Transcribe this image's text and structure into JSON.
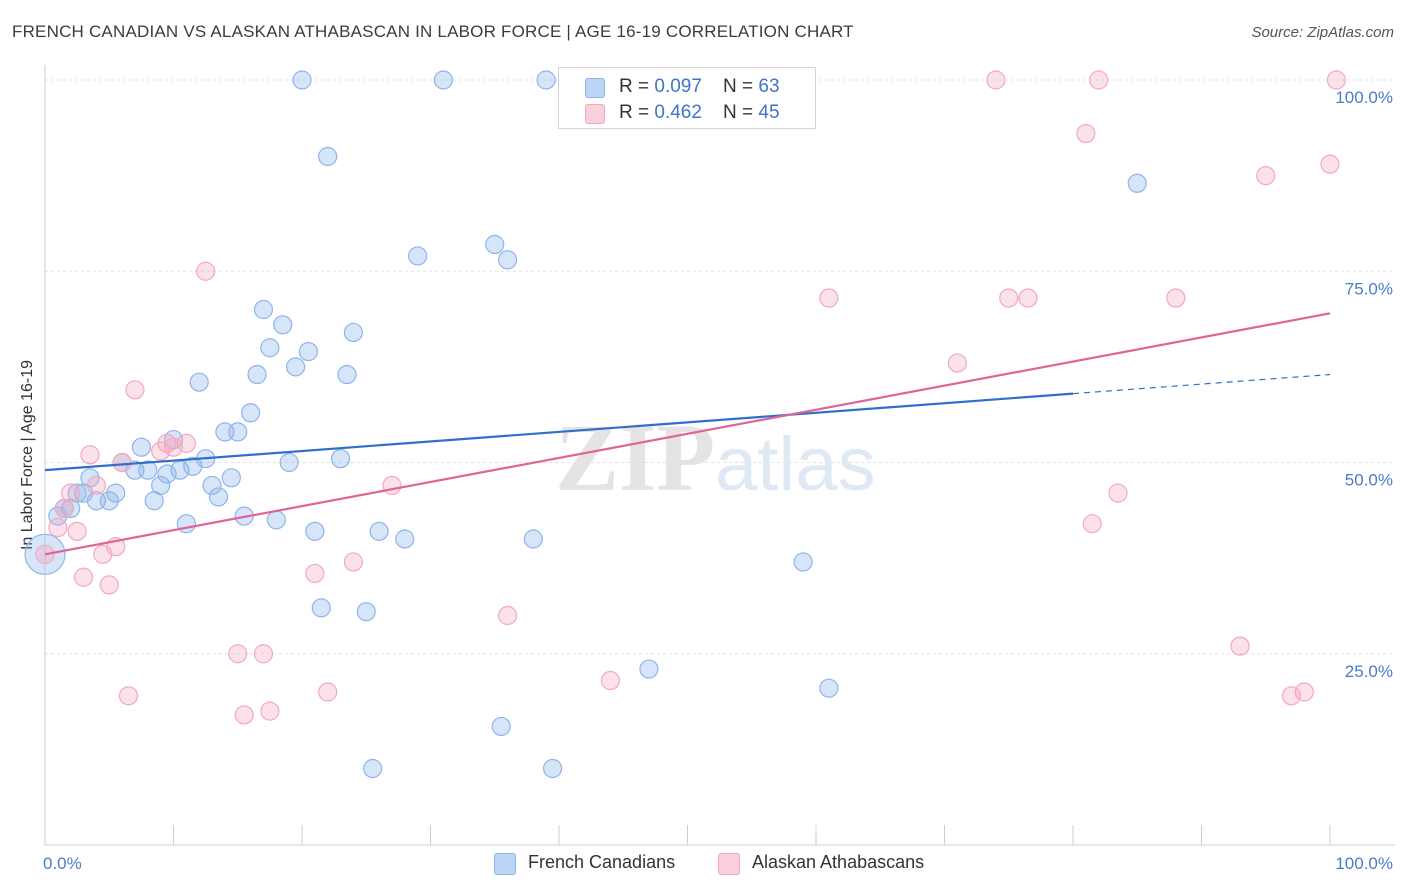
{
  "chart_data": {
    "type": "scatter",
    "title": "FRENCH CANADIAN VS ALASKAN ATHABASCAN IN LABOR FORCE | AGE 16-19 CORRELATION CHART",
    "source": "Source: ZipAtlas.com",
    "xlabel": "",
    "ylabel": "In Labor Force | Age 16-19",
    "xlim": [
      0,
      100
    ],
    "ylim": [
      0,
      100
    ],
    "x_tick_labels": [
      "0.0%",
      "100.0%"
    ],
    "y_ticks": [
      25,
      50,
      75,
      100
    ],
    "y_tick_labels": [
      "25.0%",
      "50.0%",
      "75.0%",
      "100.0%"
    ],
    "grid": true,
    "watermark": "ZIPatlas",
    "legend_position": "top-center",
    "series": [
      {
        "name": "French Canadians",
        "color": "#8db5ea",
        "line_color": "#2f6fcb",
        "R": "0.097",
        "N": "63",
        "trend": {
          "x0": 0,
          "y0": 49.0,
          "x1": 80,
          "y1": 59.0,
          "dash_to_x": 100,
          "dash_to_y": 61.5
        },
        "points": [
          [
            0,
            38
          ],
          [
            1,
            43
          ],
          [
            1.5,
            44
          ],
          [
            2,
            44
          ],
          [
            2.5,
            46
          ],
          [
            3,
            46
          ],
          [
            3.5,
            48
          ],
          [
            4,
            45
          ],
          [
            5,
            45
          ],
          [
            5.5,
            46
          ],
          [
            6,
            50
          ],
          [
            7,
            49
          ],
          [
            7.5,
            52
          ],
          [
            8,
            49
          ],
          [
            8.5,
            45
          ],
          [
            9,
            47
          ],
          [
            9.5,
            48.5
          ],
          [
            10,
            53
          ],
          [
            10.5,
            49
          ],
          [
            11,
            42
          ],
          [
            11.5,
            49.5
          ],
          [
            12,
            60.5
          ],
          [
            12.5,
            50.5
          ],
          [
            13,
            47
          ],
          [
            13.5,
            45.5
          ],
          [
            14,
            54
          ],
          [
            14.5,
            48
          ],
          [
            15,
            54
          ],
          [
            15.5,
            43
          ],
          [
            16,
            56.5
          ],
          [
            16.5,
            61.5
          ],
          [
            17,
            70
          ],
          [
            17.5,
            65
          ],
          [
            18,
            42.5
          ],
          [
            18.5,
            68
          ],
          [
            19,
            50
          ],
          [
            19.5,
            62.5
          ],
          [
            20,
            100
          ],
          [
            20.5,
            64.5
          ],
          [
            21,
            41
          ],
          [
            21.5,
            31
          ],
          [
            22,
            90
          ],
          [
            23,
            50.5
          ],
          [
            23.5,
            61.5
          ],
          [
            24,
            67
          ],
          [
            25,
            30.5
          ],
          [
            25.5,
            10
          ],
          [
            26,
            41
          ],
          [
            28,
            40
          ],
          [
            29,
            77
          ],
          [
            31,
            100
          ],
          [
            35,
            78.5
          ],
          [
            35.5,
            15.5
          ],
          [
            36,
            76.5
          ],
          [
            38,
            40
          ],
          [
            39,
            100
          ],
          [
            39.5,
            10
          ],
          [
            47,
            23
          ],
          [
            59,
            37
          ],
          [
            61,
            20.5
          ],
          [
            85,
            86.5
          ]
        ]
      },
      {
        "name": "Alaskan Athabascans",
        "color": "#f3a8c0",
        "line_color": "#e0649a",
        "R": "0.462",
        "N": "45",
        "trend": {
          "x0": 0,
          "y0": 38.0,
          "x1": 100,
          "y1": 69.5
        },
        "points": [
          [
            0,
            38
          ],
          [
            1,
            41.5
          ],
          [
            1.5,
            44
          ],
          [
            2,
            46
          ],
          [
            2.5,
            41
          ],
          [
            3,
            35
          ],
          [
            3.5,
            51
          ],
          [
            4,
            47
          ],
          [
            4.5,
            38
          ],
          [
            5,
            34
          ],
          [
            5.5,
            39
          ],
          [
            6,
            50
          ],
          [
            6.5,
            19.5
          ],
          [
            7,
            59.5
          ],
          [
            9,
            51.5
          ],
          [
            9.5,
            52.5
          ],
          [
            10,
            52
          ],
          [
            11,
            52.5
          ],
          [
            12.5,
            75
          ],
          [
            15,
            25
          ],
          [
            15.5,
            17
          ],
          [
            17,
            25
          ],
          [
            17.5,
            17.5
          ],
          [
            21,
            35.5
          ],
          [
            22,
            20
          ],
          [
            24,
            37
          ],
          [
            27,
            47
          ],
          [
            36,
            30
          ],
          [
            44,
            21.5
          ],
          [
            61,
            71.5
          ],
          [
            71,
            63
          ],
          [
            74,
            100
          ],
          [
            75,
            71.5
          ],
          [
            76.5,
            71.5
          ],
          [
            81,
            93
          ],
          [
            81.5,
            42
          ],
          [
            82,
            100
          ],
          [
            83.5,
            46
          ],
          [
            88,
            71.5
          ],
          [
            93,
            26
          ],
          [
            95,
            87.5
          ],
          [
            97,
            19.5
          ],
          [
            98,
            20
          ],
          [
            100,
            89
          ],
          [
            100.5,
            100
          ]
        ]
      }
    ]
  },
  "legend": {
    "rows": [
      {
        "r_label": "R = ",
        "r_value": "0.097",
        "n_label": "N = ",
        "n_value": "63"
      },
      {
        "r_label": "R = ",
        "r_value": "0.462",
        "n_label": "N = ",
        "n_value": "45"
      }
    ],
    "bottom": [
      "French Canadians",
      "Alaskan Athabascans"
    ]
  }
}
